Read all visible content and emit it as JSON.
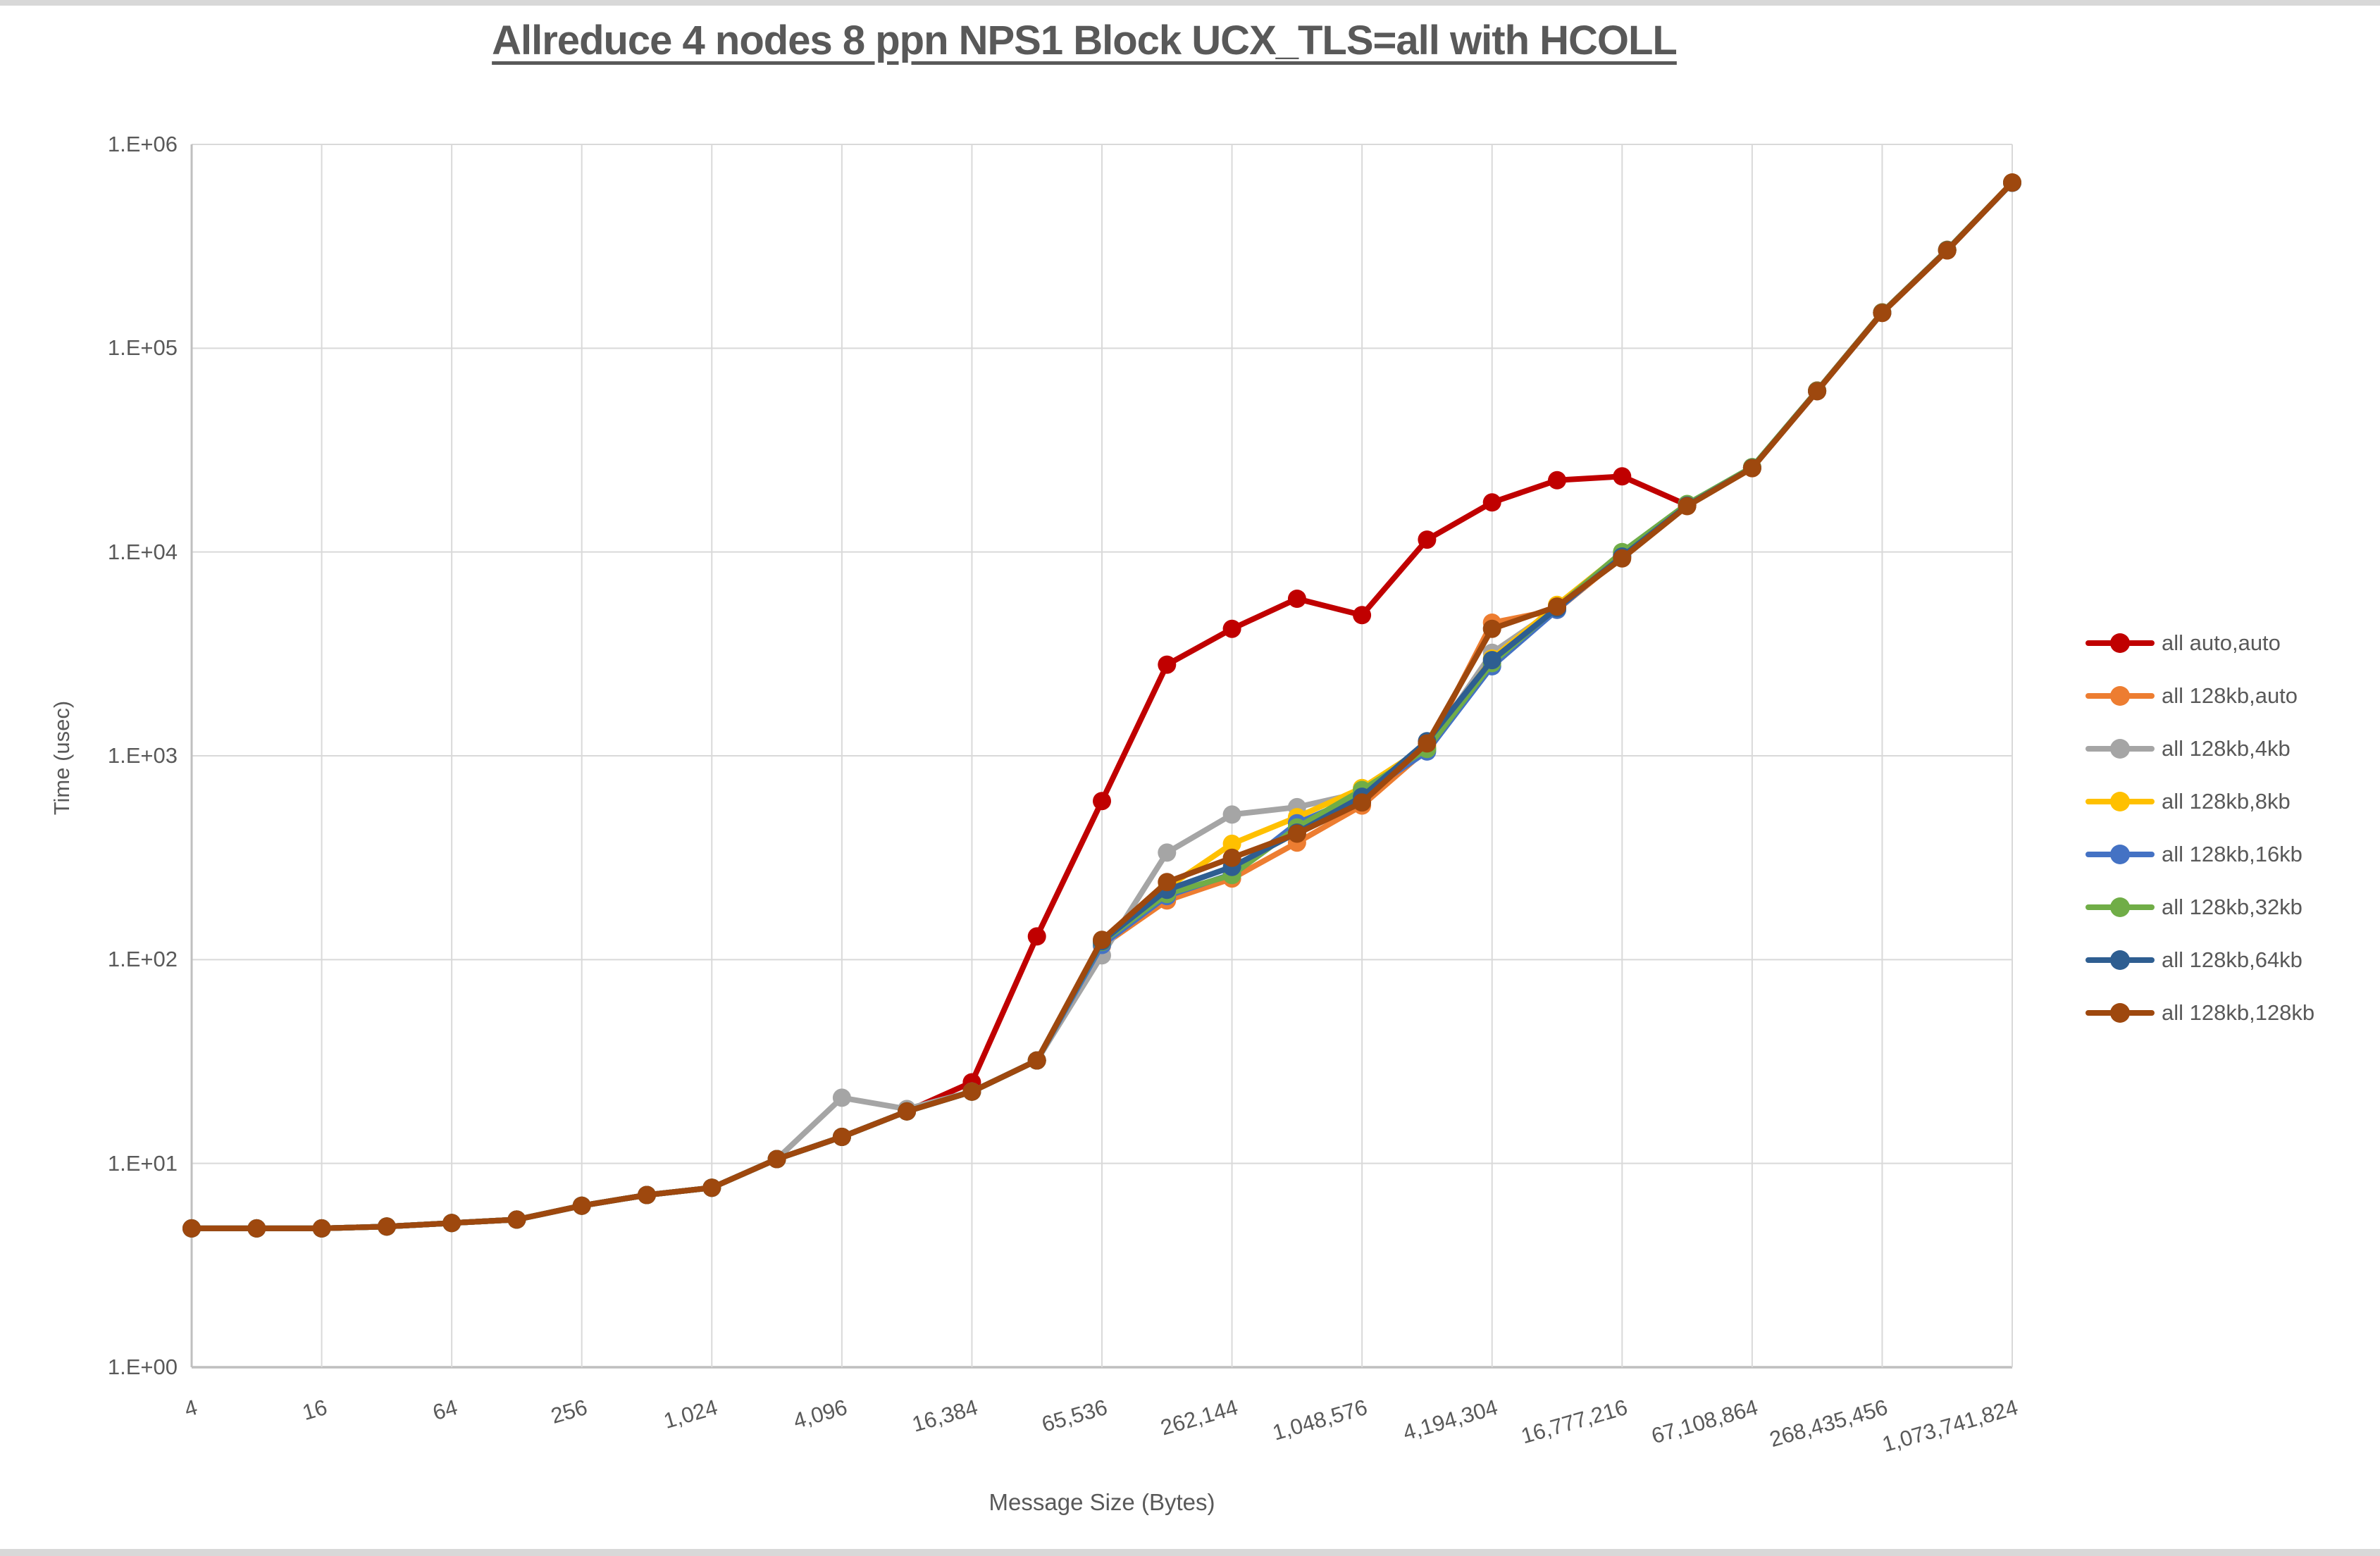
{
  "chart_data": {
    "type": "line",
    "title": "Allreduce 4 nodes 8 ppn NPS1 Block UCX_TLS=all with HCOLL",
    "xlabel": "Message Size (Bytes)",
    "ylabel": "Time (usec)",
    "x_scale": "log2",
    "y_scale": "log10",
    "ylim": [
      1,
      1000000
    ],
    "grid": true,
    "legend_position": "right",
    "x": [
      4,
      8,
      16,
      32,
      64,
      128,
      256,
      512,
      1024,
      2048,
      4096,
      8192,
      16384,
      32768,
      65536,
      131072,
      262144,
      524288,
      1048576,
      2097152,
      4194304,
      8388608,
      16777216,
      33554432,
      67108864,
      134217728,
      268435456,
      536870912,
      1073741824
    ],
    "x_tick_labels": [
      "4",
      "16",
      "64",
      "256",
      "1,024",
      "4,096",
      "16,384",
      "65,536",
      "262,144",
      "1,048,576",
      "4,194,304",
      "16,777,216",
      "67,108,864",
      "268,435,456",
      "1,073,741,824"
    ],
    "y_tick_labels": [
      "1.E+00",
      "1.E+01",
      "1.E+02",
      "1.E+03",
      "1.E+04",
      "1.E+05",
      "1.E+06"
    ],
    "colors": {
      "text": "#595959",
      "grid": "#D9D9D9",
      "axis": "#BFBFBF",
      "background": "#FFFFFF"
    },
    "series": [
      {
        "name": "all auto,auto",
        "color": "#C00000",
        "values": [
          4.8,
          4.8,
          4.8,
          4.9,
          5.1,
          5.3,
          6.2,
          7.0,
          7.6,
          10.5,
          13.5,
          18,
          25,
          130,
          600,
          2800,
          4200,
          5900,
          4900,
          11500,
          17500,
          22500,
          23500,
          17000,
          26000,
          62000,
          150000,
          304000,
          650000
        ]
      },
      {
        "name": "all 128kb,auto",
        "color": "#ED7D31",
        "values": [
          4.8,
          4.8,
          4.8,
          4.9,
          5.1,
          5.3,
          6.2,
          7.0,
          7.6,
          10.5,
          13.5,
          18,
          22.5,
          32,
          117,
          195,
          250,
          375,
          570,
          1080,
          4500,
          5200,
          9500,
          16900,
          25800,
          61500,
          149000,
          302000,
          648000
        ]
      },
      {
        "name": "all 128kb,4kb",
        "color": "#A5A5A5",
        "values": [
          4.8,
          4.8,
          4.8,
          4.9,
          5.1,
          5.3,
          6.2,
          7.0,
          7.6,
          10.5,
          21,
          18.5,
          22.5,
          32,
          105,
          335,
          515,
          560,
          660,
          1100,
          3200,
          5300,
          9600,
          17000,
          25900,
          61700,
          149500,
          303000,
          649000
        ]
      },
      {
        "name": "all 128kb,8kb",
        "color": "#FFC000",
        "values": [
          4.8,
          4.8,
          4.8,
          4.9,
          5.1,
          5.3,
          6.2,
          7.0,
          7.6,
          10.5,
          13.5,
          18,
          22.5,
          32,
          120,
          225,
          370,
          500,
          695,
          1120,
          3000,
          5500,
          9900,
          17100,
          26000,
          61800,
          149700,
          303500,
          649500
        ]
      },
      {
        "name": "all 128kb,16kb",
        "color": "#4472C4",
        "values": [
          4.8,
          4.8,
          4.8,
          4.9,
          5.1,
          5.3,
          6.2,
          7.0,
          7.6,
          10.5,
          13.5,
          18,
          22.5,
          32,
          118,
          205,
          263,
          467,
          640,
          1050,
          2750,
          5200,
          9700,
          17000,
          25900,
          61600,
          149300,
          302500,
          648500
        ]
      },
      {
        "name": "all 128kb,32kb",
        "color": "#70AD47",
        "values": [
          4.8,
          4.8,
          4.8,
          4.9,
          5.1,
          5.3,
          6.2,
          7.0,
          7.6,
          10.5,
          13.5,
          18,
          22.5,
          32,
          122,
          210,
          260,
          445,
          680,
          1080,
          2850,
          5350,
          10000,
          17200,
          26100,
          61900,
          149800,
          303800,
          649800
        ]
      },
      {
        "name": "all 128kb,64kb",
        "color": "#2E5E91",
        "values": [
          4.8,
          4.8,
          4.8,
          4.9,
          5.1,
          5.3,
          6.2,
          7.0,
          7.6,
          10.5,
          13.5,
          18,
          22.5,
          32,
          123,
          220,
          285,
          420,
          630,
          1180,
          2950,
          5300,
          9500,
          16900,
          25850,
          61600,
          149200,
          302800,
          648800
        ]
      },
      {
        "name": "all 128kb,128kb",
        "color": "#9E480E",
        "values": [
          4.8,
          4.8,
          4.8,
          4.9,
          5.1,
          5.3,
          6.2,
          7.0,
          7.6,
          10.5,
          13.5,
          18,
          22.5,
          32,
          125,
          240,
          316,
          415,
          590,
          1150,
          4200,
          5400,
          9300,
          16800,
          25800,
          61500,
          149000,
          302000,
          650000
        ]
      }
    ]
  }
}
